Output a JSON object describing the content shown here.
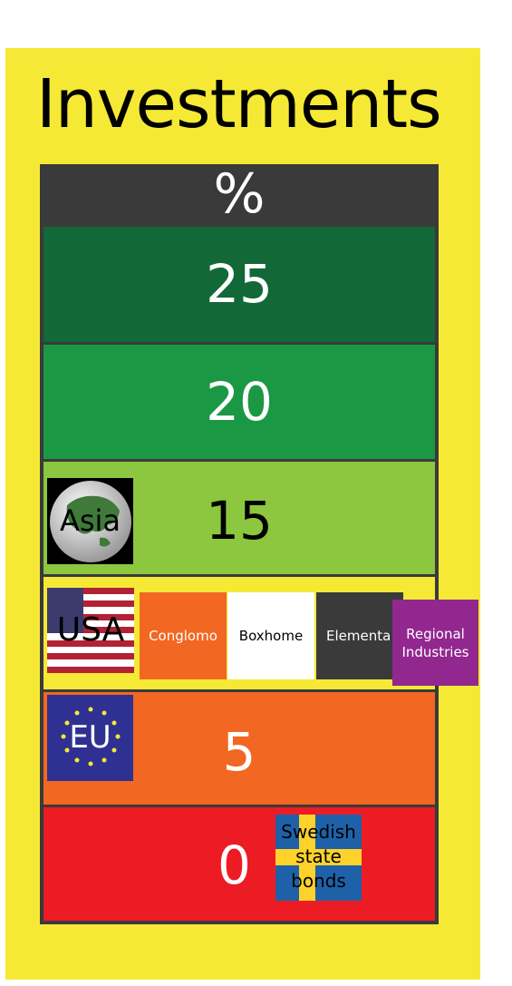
{
  "title": "Investments",
  "header": {
    "label": "%"
  },
  "rows": [
    {
      "value": "25",
      "color": "#136838"
    },
    {
      "value": "20",
      "color": "#1b9843"
    },
    {
      "value": "15",
      "color": "#8dc63f",
      "badge": "Asia"
    },
    {
      "value": "",
      "color": "#f5e936",
      "badge": "USA",
      "companies": [
        {
          "name": "Conglomo",
          "bg": "#f26722",
          "fg": "#ffffff"
        },
        {
          "name": "Boxhome",
          "bg": "#ffffff",
          "fg": "#000000"
        },
        {
          "name": "Elementa",
          "bg": "#3a3a3a",
          "fg": "#ffffff"
        },
        {
          "name": "Regional Industries",
          "bg": "#92278f",
          "fg": "#ffffff"
        }
      ]
    },
    {
      "value": "5",
      "color": "#f26722",
      "badge": "EU"
    },
    {
      "value": "0",
      "color": "#ed1c24",
      "badge": "Swedish state bonds"
    }
  ],
  "icons": {
    "asia": "globe-icon",
    "usa": "us-flag-icon",
    "eu": "eu-flag-icon",
    "sweden": "swedish-flag-icon"
  }
}
